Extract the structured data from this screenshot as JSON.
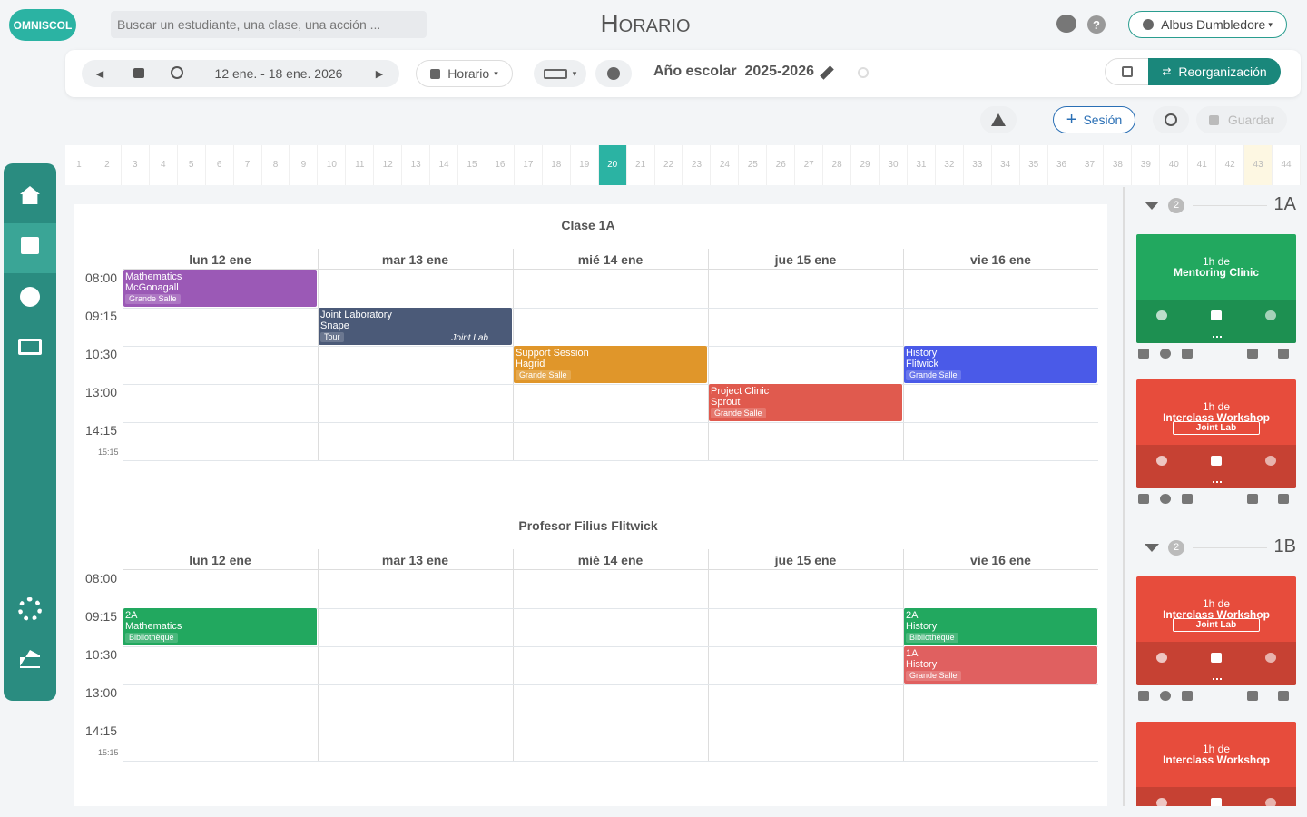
{
  "header": {
    "logo": "OMNISCOL",
    "search_placeholder": "Buscar un estudiante, una clase, una acción ...",
    "title": "Horario",
    "user": "Albus Dumbledore"
  },
  "toolbar": {
    "date_range": "12 ene. - 18 ene. 2026",
    "view": "Horario",
    "year_label": "Año escolar",
    "year": "2025-2026",
    "reorganize": "Reorganización"
  },
  "actions": {
    "session": "Sesión",
    "save": "Guardar"
  },
  "weeks": {
    "numbers": [
      1,
      2,
      3,
      4,
      5,
      6,
      7,
      8,
      9,
      10,
      11,
      12,
      13,
      14,
      15,
      16,
      17,
      18,
      19,
      20,
      21,
      22,
      23,
      24,
      25,
      26,
      27,
      28,
      29,
      30,
      31,
      32,
      33,
      34,
      35,
      36,
      37,
      38,
      39,
      40,
      41,
      42,
      43,
      44
    ],
    "current": 20,
    "marked": 43
  },
  "timetables": [
    {
      "title": "Clase 1A",
      "times": [
        "08:00",
        "09:15",
        "10:30",
        "13:00",
        "14:15"
      ],
      "end": "15:15",
      "days": [
        {
          "label": "lun 12 ene",
          "events": [
            {
              "start": "08:00",
              "lines": [
                "Mathematics",
                "McGonagall"
              ],
              "room": "Grande Salle",
              "color": "#9b59b6"
            }
          ]
        },
        {
          "label": "mar 13 ene",
          "events": [
            {
              "start": "09:15",
              "lines": [
                "Joint Laboratory",
                "Snape"
              ],
              "room": "Tour",
              "tag": "Joint Lab",
              "color": "#4b5a78"
            }
          ]
        },
        {
          "label": "mié 14 ene",
          "events": [
            {
              "start": "10:30",
              "lines": [
                "Support Session",
                "Hagrid"
              ],
              "room": "Grande Salle",
              "color": "#e0962a"
            }
          ]
        },
        {
          "label": "jue 15 ene",
          "events": [
            {
              "start": "13:00",
              "lines": [
                "Project Clinic",
                "Sprout"
              ],
              "room": "Grande Salle",
              "color": "#e05a4e"
            }
          ]
        },
        {
          "label": "vie 16 ene",
          "events": [
            {
              "start": "10:30",
              "lines": [
                "History",
                "Flitwick"
              ],
              "room": "Grande Salle",
              "color": "#4a5ae8"
            }
          ]
        }
      ]
    },
    {
      "title": "Profesor Filius Flitwick",
      "times": [
        "08:00",
        "09:15",
        "10:30",
        "13:00",
        "14:15"
      ],
      "end": "15:15",
      "days": [
        {
          "label": "lun 12 ene",
          "events": [
            {
              "start": "09:15",
              "lines": [
                "2A",
                "Mathematics"
              ],
              "room": "Bibliothèque",
              "color": "#22a85f"
            }
          ]
        },
        {
          "label": "mar 13 ene",
          "events": []
        },
        {
          "label": "mié 14 ene",
          "events": []
        },
        {
          "label": "jue 15 ene",
          "events": []
        },
        {
          "label": "vie 16 ene",
          "events": [
            {
              "start": "09:15",
              "lines": [
                "2A",
                "History"
              ],
              "room": "Bibliothèque",
              "color": "#22a85f"
            },
            {
              "start": "10:30",
              "lines": [
                "1A",
                "History"
              ],
              "room": "Grande Salle",
              "color": "#e06060"
            }
          ]
        }
      ]
    }
  ],
  "pending": [
    {
      "count": 2,
      "name": "1A",
      "cards": [
        {
          "duration": "1h de",
          "title": "Mentoring Clinic",
          "color": "#22a85f"
        },
        {
          "duration": "1h de",
          "title": "Interclass Workshop",
          "tag": "Joint Lab",
          "color": "#e74c3c"
        }
      ]
    },
    {
      "count": 2,
      "name": "1B",
      "cards": [
        {
          "duration": "1h de",
          "title": "Interclass Workshop",
          "tag": "Joint Lab",
          "color": "#e74c3c"
        },
        {
          "duration": "1h de",
          "title": "Interclass Workshop",
          "color": "#e74c3c"
        }
      ]
    }
  ]
}
